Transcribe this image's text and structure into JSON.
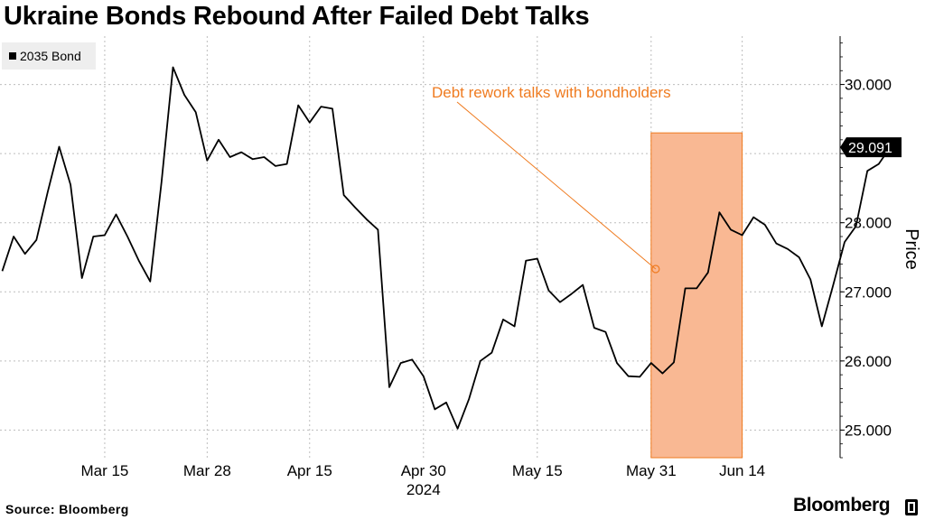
{
  "title": "Ukraine Bonds Rebound After Failed Debt Talks",
  "legend": {
    "label": "2035 Bond",
    "color": "#000000"
  },
  "source": "Source: Bloomberg",
  "brand": "Bloomberg",
  "chart_data": {
    "type": "line",
    "ylabel": "Price",
    "ylim": [
      24.6,
      30.7
    ],
    "yticks": [
      25,
      26,
      27,
      28,
      29,
      30
    ],
    "ytick_labels": [
      "25.000",
      "26.000",
      "27.000",
      "28.000",
      "",
      "30.000"
    ],
    "grid": true,
    "xlim": [
      -0.2,
      73.6
    ],
    "xticks": [
      {
        "x": 9,
        "label": "Mar 15"
      },
      {
        "x": 18,
        "label": "Mar 28"
      },
      {
        "x": 27,
        "label": "Apr 15"
      },
      {
        "x": 37,
        "label": "Apr 30"
      },
      {
        "x": 47,
        "label": "May 15"
      },
      {
        "x": 57,
        "label": "May 31"
      },
      {
        "x": 65,
        "label": "Jun 14"
      }
    ],
    "year_label": {
      "x": 37,
      "label": "2024"
    },
    "series": [
      {
        "name": "2035 Bond",
        "color": "#000000",
        "x": [
          0,
          1,
          2,
          3,
          4,
          5,
          6,
          7,
          8,
          9,
          10,
          11,
          12,
          13,
          14,
          15,
          16,
          17,
          18,
          19,
          20,
          21,
          22,
          23,
          24,
          25,
          26,
          27,
          28,
          29,
          30,
          31,
          32,
          33,
          34,
          35,
          36,
          37,
          38,
          39,
          40,
          41,
          42,
          43,
          44,
          45,
          46,
          47,
          48,
          49,
          50,
          51,
          52,
          53,
          54,
          55,
          56,
          57,
          58,
          59,
          60,
          61,
          62,
          63,
          64,
          65,
          66,
          67,
          68,
          69,
          70,
          71,
          72
        ],
        "values": [
          27.3,
          27.8,
          27.55,
          27.75,
          28.45,
          29.1,
          28.55,
          27.2,
          27.8,
          27.82,
          28.12,
          27.8,
          27.45,
          27.15,
          28.6,
          30.25,
          29.85,
          29.6,
          28.9,
          29.2,
          28.95,
          29.02,
          28.92,
          28.95,
          28.82,
          28.85,
          29.7,
          29.45,
          29.68,
          29.65,
          28.4,
          28.22,
          28.05,
          27.9,
          25.62,
          25.97,
          26.02,
          25.78,
          25.3,
          25.4,
          25.02,
          25.45,
          26.0,
          26.12,
          26.6,
          26.5,
          27.45,
          27.48,
          27.02,
          26.85,
          26.97,
          27.1,
          26.48,
          26.42,
          25.97,
          25.78,
          25.77,
          25.97,
          25.82,
          25.98,
          27.05,
          27.05,
          27.28,
          28.15,
          27.9,
          27.82,
          28.08,
          27.97,
          27.7,
          27.62,
          27.5,
          27.18,
          26.5
        ]
      }
    ],
    "series_tail": {
      "x": [
        73,
        74,
        75,
        76,
        77,
        78
      ],
      "values": [
        27.1,
        27.72,
        27.95,
        28.75,
        28.85,
        29.091
      ]
    },
    "last_value_label": "29.091",
    "highlight": {
      "x_start": 57,
      "x_end": 65,
      "y_top": 29.3,
      "y_bottom": 24.6,
      "color": "#f9b893",
      "border": "#ef7b20"
    },
    "annotation": {
      "text": "Debt rework talks with bondholders",
      "x": 57.4,
      "y": 27.33,
      "color": "#ef7b20"
    }
  }
}
